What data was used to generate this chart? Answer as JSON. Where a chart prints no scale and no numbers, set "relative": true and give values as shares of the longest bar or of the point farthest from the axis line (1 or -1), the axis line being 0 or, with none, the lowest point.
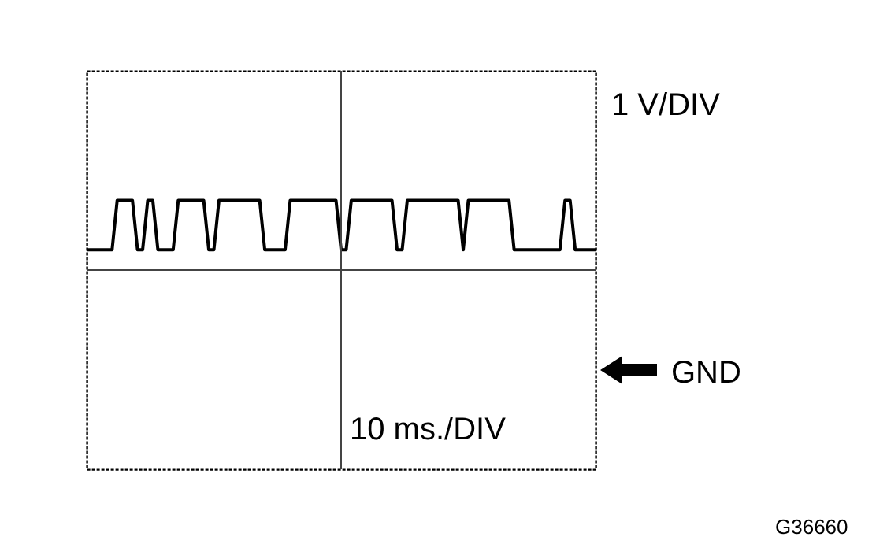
{
  "chart_data": {
    "type": "line",
    "relative": true,
    "categories": [
      null,
      null,
      null,
      null,
      null,
      null,
      null,
      null,
      null,
      null,
      null,
      null,
      null,
      null,
      null,
      null,
      null,
      null,
      null,
      null,
      null,
      null,
      null,
      null,
      null,
      null,
      null,
      null,
      null,
      null,
      null,
      null,
      null,
      null,
      null,
      null,
      null,
      null,
      null,
      null,
      null,
      null,
      null,
      null,
      null,
      null,
      null,
      null,
      null,
      null,
      null,
      null,
      null,
      null,
      null,
      null,
      null,
      null,
      null,
      null,
      null,
      null,
      null,
      null,
      null,
      null,
      null,
      null,
      null,
      null,
      null,
      null,
      null,
      null,
      null,
      null,
      null,
      null,
      null,
      null,
      null,
      null,
      null,
      null,
      null,
      null,
      null,
      null,
      null,
      null,
      null,
      null,
      null,
      null,
      null,
      null,
      null,
      null,
      null,
      null,
      null
    ],
    "series": [
      {
        "color": "#000000",
        "values": [
          0.29,
          0.29,
          0.29,
          0.29,
          0.29,
          0.29,
          1,
          1,
          1,
          1,
          0.29,
          0.29,
          1,
          1,
          0.29,
          0.29,
          0.29,
          0.29,
          1,
          1,
          1,
          1,
          1,
          1,
          0.29,
          0.29,
          1,
          1,
          1,
          1,
          1,
          1,
          1,
          1,
          1,
          0.29,
          0.29,
          0.29,
          0.29,
          0.29,
          1,
          1,
          1,
          1,
          1,
          1,
          1,
          1,
          1,
          1,
          0.29,
          0.29,
          1,
          1,
          1,
          1,
          1,
          1,
          1,
          1,
          1,
          0.29,
          0.29,
          1,
          1,
          1,
          1,
          1,
          1,
          1,
          1,
          1,
          1,
          1,
          0.29,
          1,
          1,
          1,
          1,
          1,
          1,
          1,
          1,
          1,
          0.29,
          0.29,
          0.29,
          0.29,
          0.29,
          0.29,
          0.29,
          0.29,
          0.29,
          0.29,
          1,
          1,
          0.29,
          0.29,
          0.29,
          0.29,
          0.29
        ]
      }
    ],
    "annotations": [
      "1 V/DIV",
      "10 ms./DIV",
      "GND",
      "G36660"
    ]
  }
}
